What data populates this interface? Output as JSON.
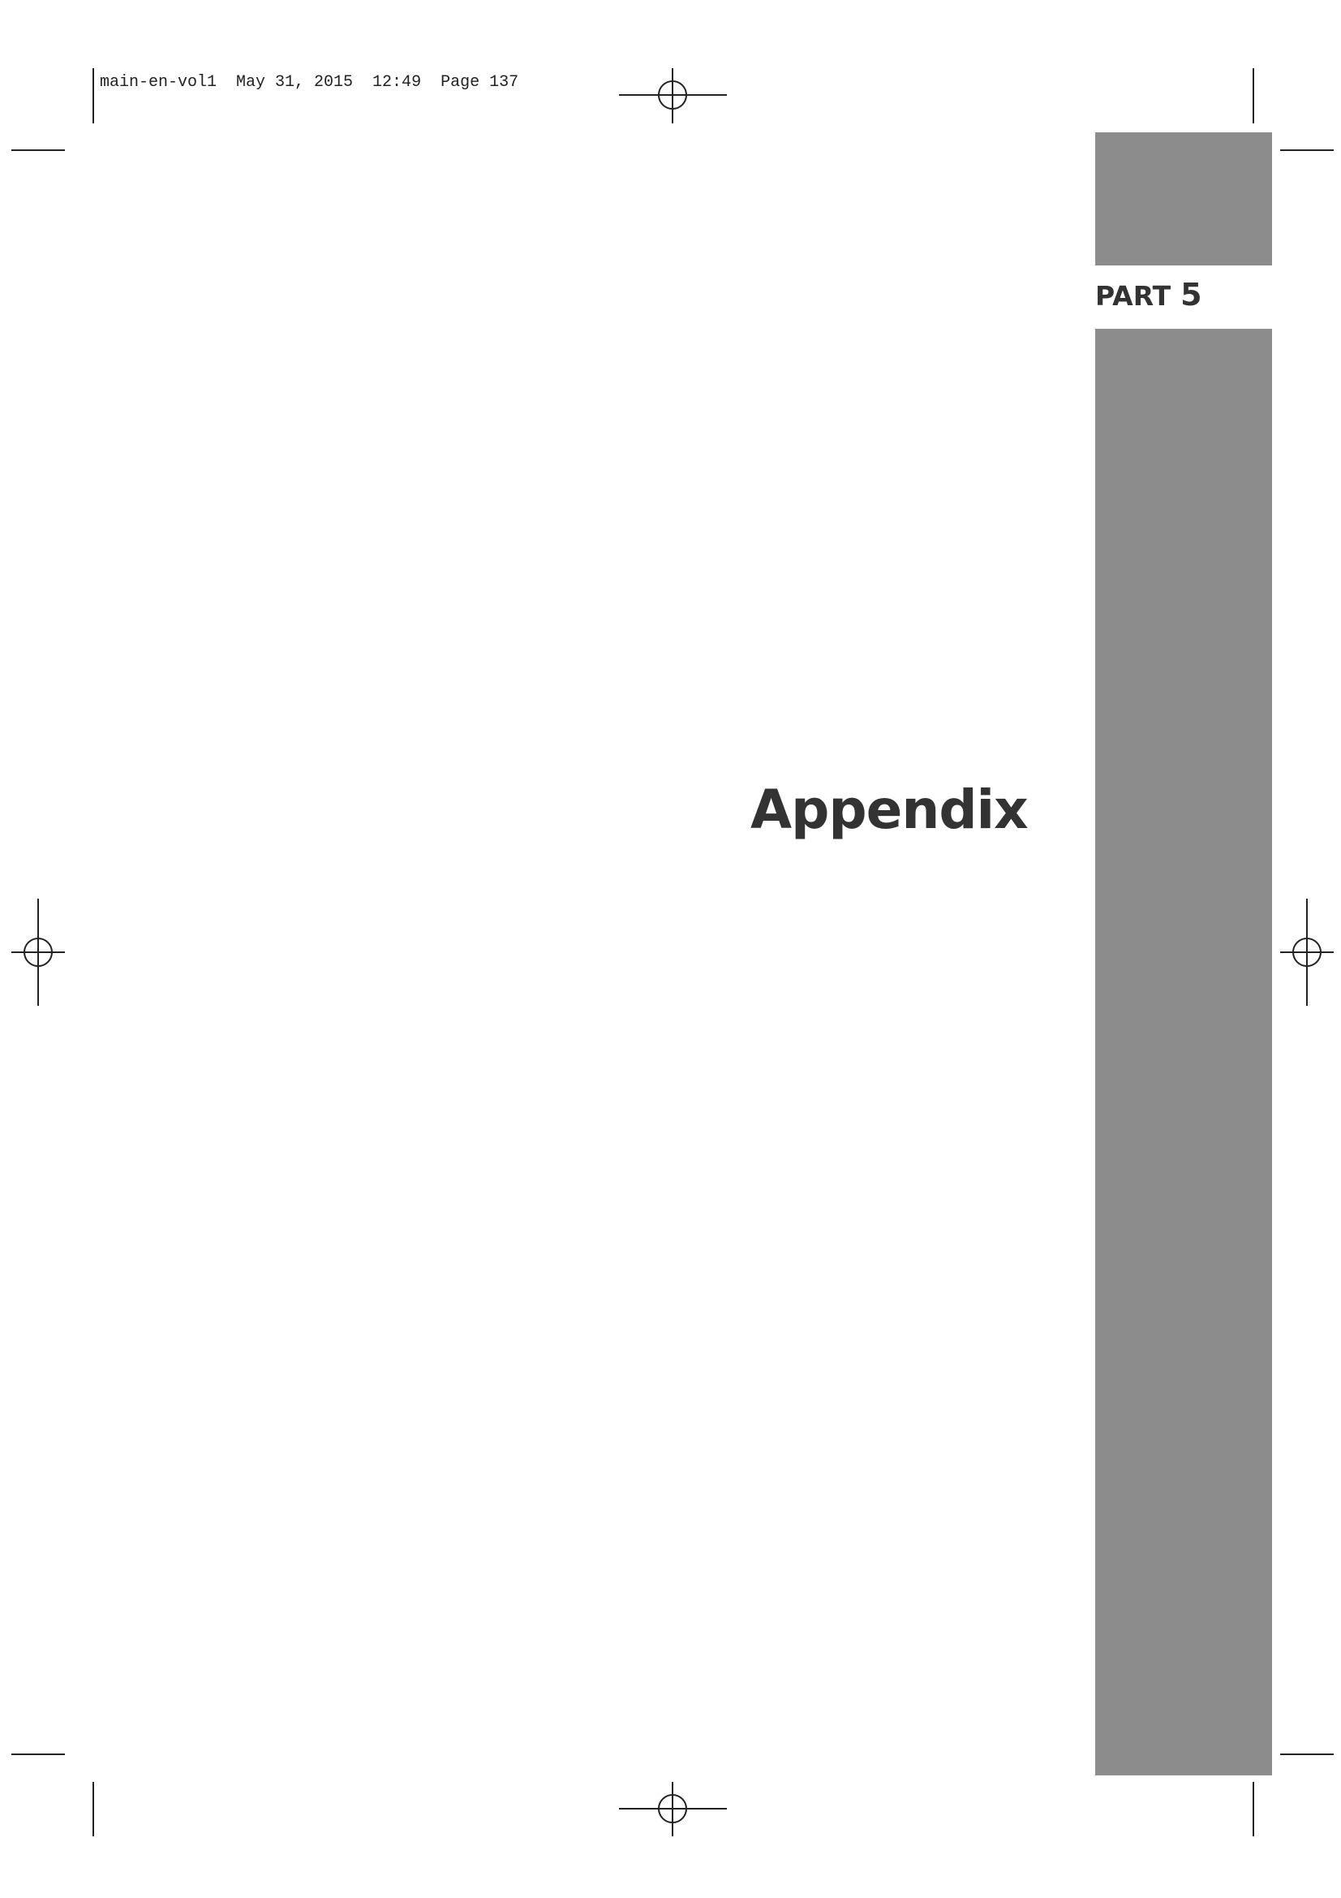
{
  "header": {
    "slug": "main-en-vol1  May 31, 2015  12:49  Page 137"
  },
  "part": {
    "label": "PART",
    "number": "5"
  },
  "title": "Appendix",
  "colors": {
    "tab": "#8c8c8c",
    "text": "#333333",
    "marks": "#222222"
  }
}
